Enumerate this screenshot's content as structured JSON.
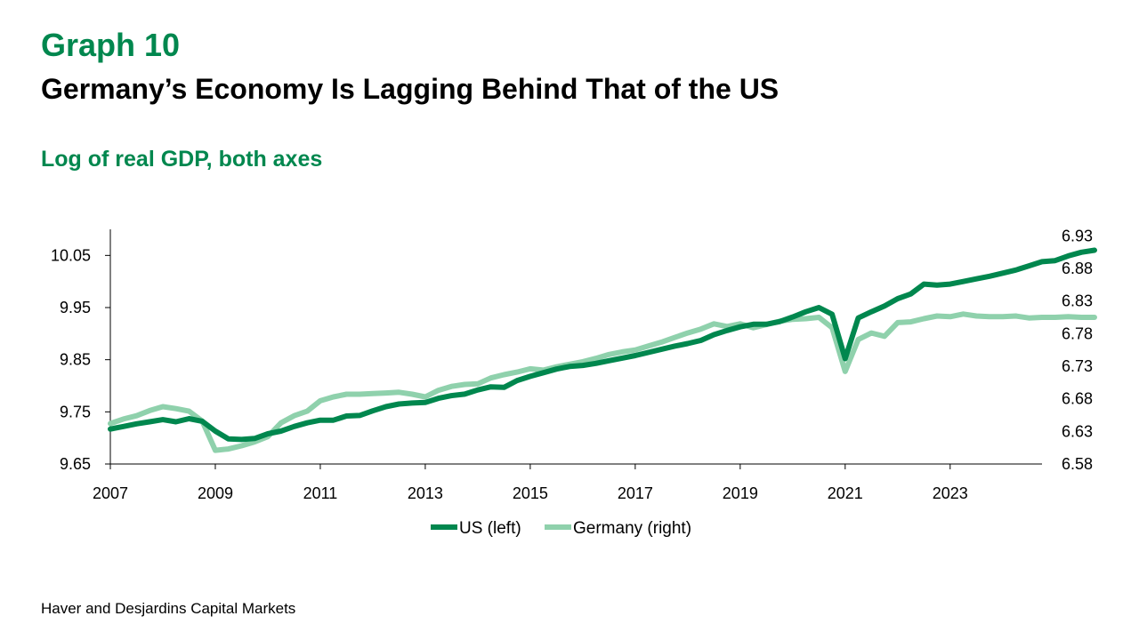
{
  "header": {
    "graph_label": "Graph 10",
    "title": "Germany’s Economy Is Lagging Behind That of the US",
    "subtitle": "Log of real GDP, both axes"
  },
  "footer": {
    "source": "Haver and Desjardins Capital Markets"
  },
  "colors": {
    "us": "#00874e",
    "germany": "#8fd1ac",
    "axis": "#000000"
  },
  "chart_data": {
    "type": "line",
    "x_start": 2007.0,
    "x_step": 0.25,
    "xlim": [
      2007.0,
      2024.75
    ],
    "x_ticks": [
      "2007",
      "2009",
      "2011",
      "2013",
      "2015",
      "2017",
      "2019",
      "2021",
      "2023"
    ],
    "x_tick_values": [
      2007,
      2009,
      2011,
      2013,
      2015,
      2017,
      2019,
      2021,
      2023
    ],
    "y_left": {
      "lim": [
        9.65,
        10.1
      ],
      "ticks": [
        "9.65",
        "9.75",
        "9.85",
        "9.95",
        "10.05"
      ],
      "tick_values": [
        9.65,
        9.75,
        9.85,
        9.95,
        10.05
      ]
    },
    "y_right": {
      "lim": [
        6.58,
        6.94
      ],
      "ticks": [
        "6.58",
        "6.63",
        "6.68",
        "6.73",
        "6.78",
        "6.83",
        "6.88",
        "6.93"
      ],
      "tick_values": [
        6.58,
        6.63,
        6.68,
        6.73,
        6.78,
        6.83,
        6.88,
        6.93
      ]
    },
    "legend_position": "bottom-center",
    "series": [
      {
        "name": "US (left)",
        "axis": "left",
        "values": [
          9.717,
          9.722,
          9.727,
          9.731,
          9.735,
          9.731,
          9.737,
          9.732,
          9.713,
          9.698,
          9.697,
          9.699,
          9.708,
          9.713,
          9.722,
          9.729,
          9.734,
          9.734,
          9.742,
          9.743,
          9.752,
          9.76,
          9.765,
          9.767,
          9.768,
          9.776,
          9.781,
          9.784,
          9.792,
          9.798,
          9.797,
          9.81,
          9.818,
          9.825,
          9.832,
          9.837,
          9.839,
          9.843,
          9.848,
          9.853,
          9.858,
          9.864,
          9.87,
          9.876,
          9.881,
          9.887,
          9.898,
          9.906,
          9.913,
          9.918,
          9.918,
          9.923,
          9.932,
          9.942,
          9.95,
          9.937,
          9.852,
          9.93,
          9.942,
          9.953,
          9.967,
          9.976,
          9.995,
          9.993,
          9.995,
          10.0,
          10.005,
          10.01,
          10.016,
          10.022,
          10.03,
          10.038,
          10.04,
          10.049,
          10.056,
          10.06
        ]
      },
      {
        "name": "Germany (right)",
        "axis": "right",
        "values": [
          6.642,
          6.649,
          6.654,
          6.662,
          6.668,
          6.665,
          6.661,
          6.646,
          6.601,
          6.603,
          6.608,
          6.614,
          6.622,
          6.643,
          6.654,
          6.661,
          6.677,
          6.683,
          6.687,
          6.687,
          6.688,
          6.689,
          6.69,
          6.687,
          6.683,
          6.693,
          6.699,
          6.702,
          6.703,
          6.712,
          6.717,
          6.721,
          6.726,
          6.724,
          6.729,
          6.733,
          6.737,
          6.742,
          6.748,
          6.752,
          6.755,
          6.761,
          6.767,
          6.774,
          6.781,
          6.787,
          6.795,
          6.791,
          6.795,
          6.789,
          6.794,
          6.799,
          6.802,
          6.803,
          6.805,
          6.789,
          6.722,
          6.771,
          6.781,
          6.776,
          6.797,
          6.798,
          6.803,
          6.807,
          6.806,
          6.81,
          6.807,
          6.806,
          6.806,
          6.807,
          6.804,
          6.805,
          6.805,
          6.806,
          6.805,
          6.805
        ]
      }
    ]
  }
}
